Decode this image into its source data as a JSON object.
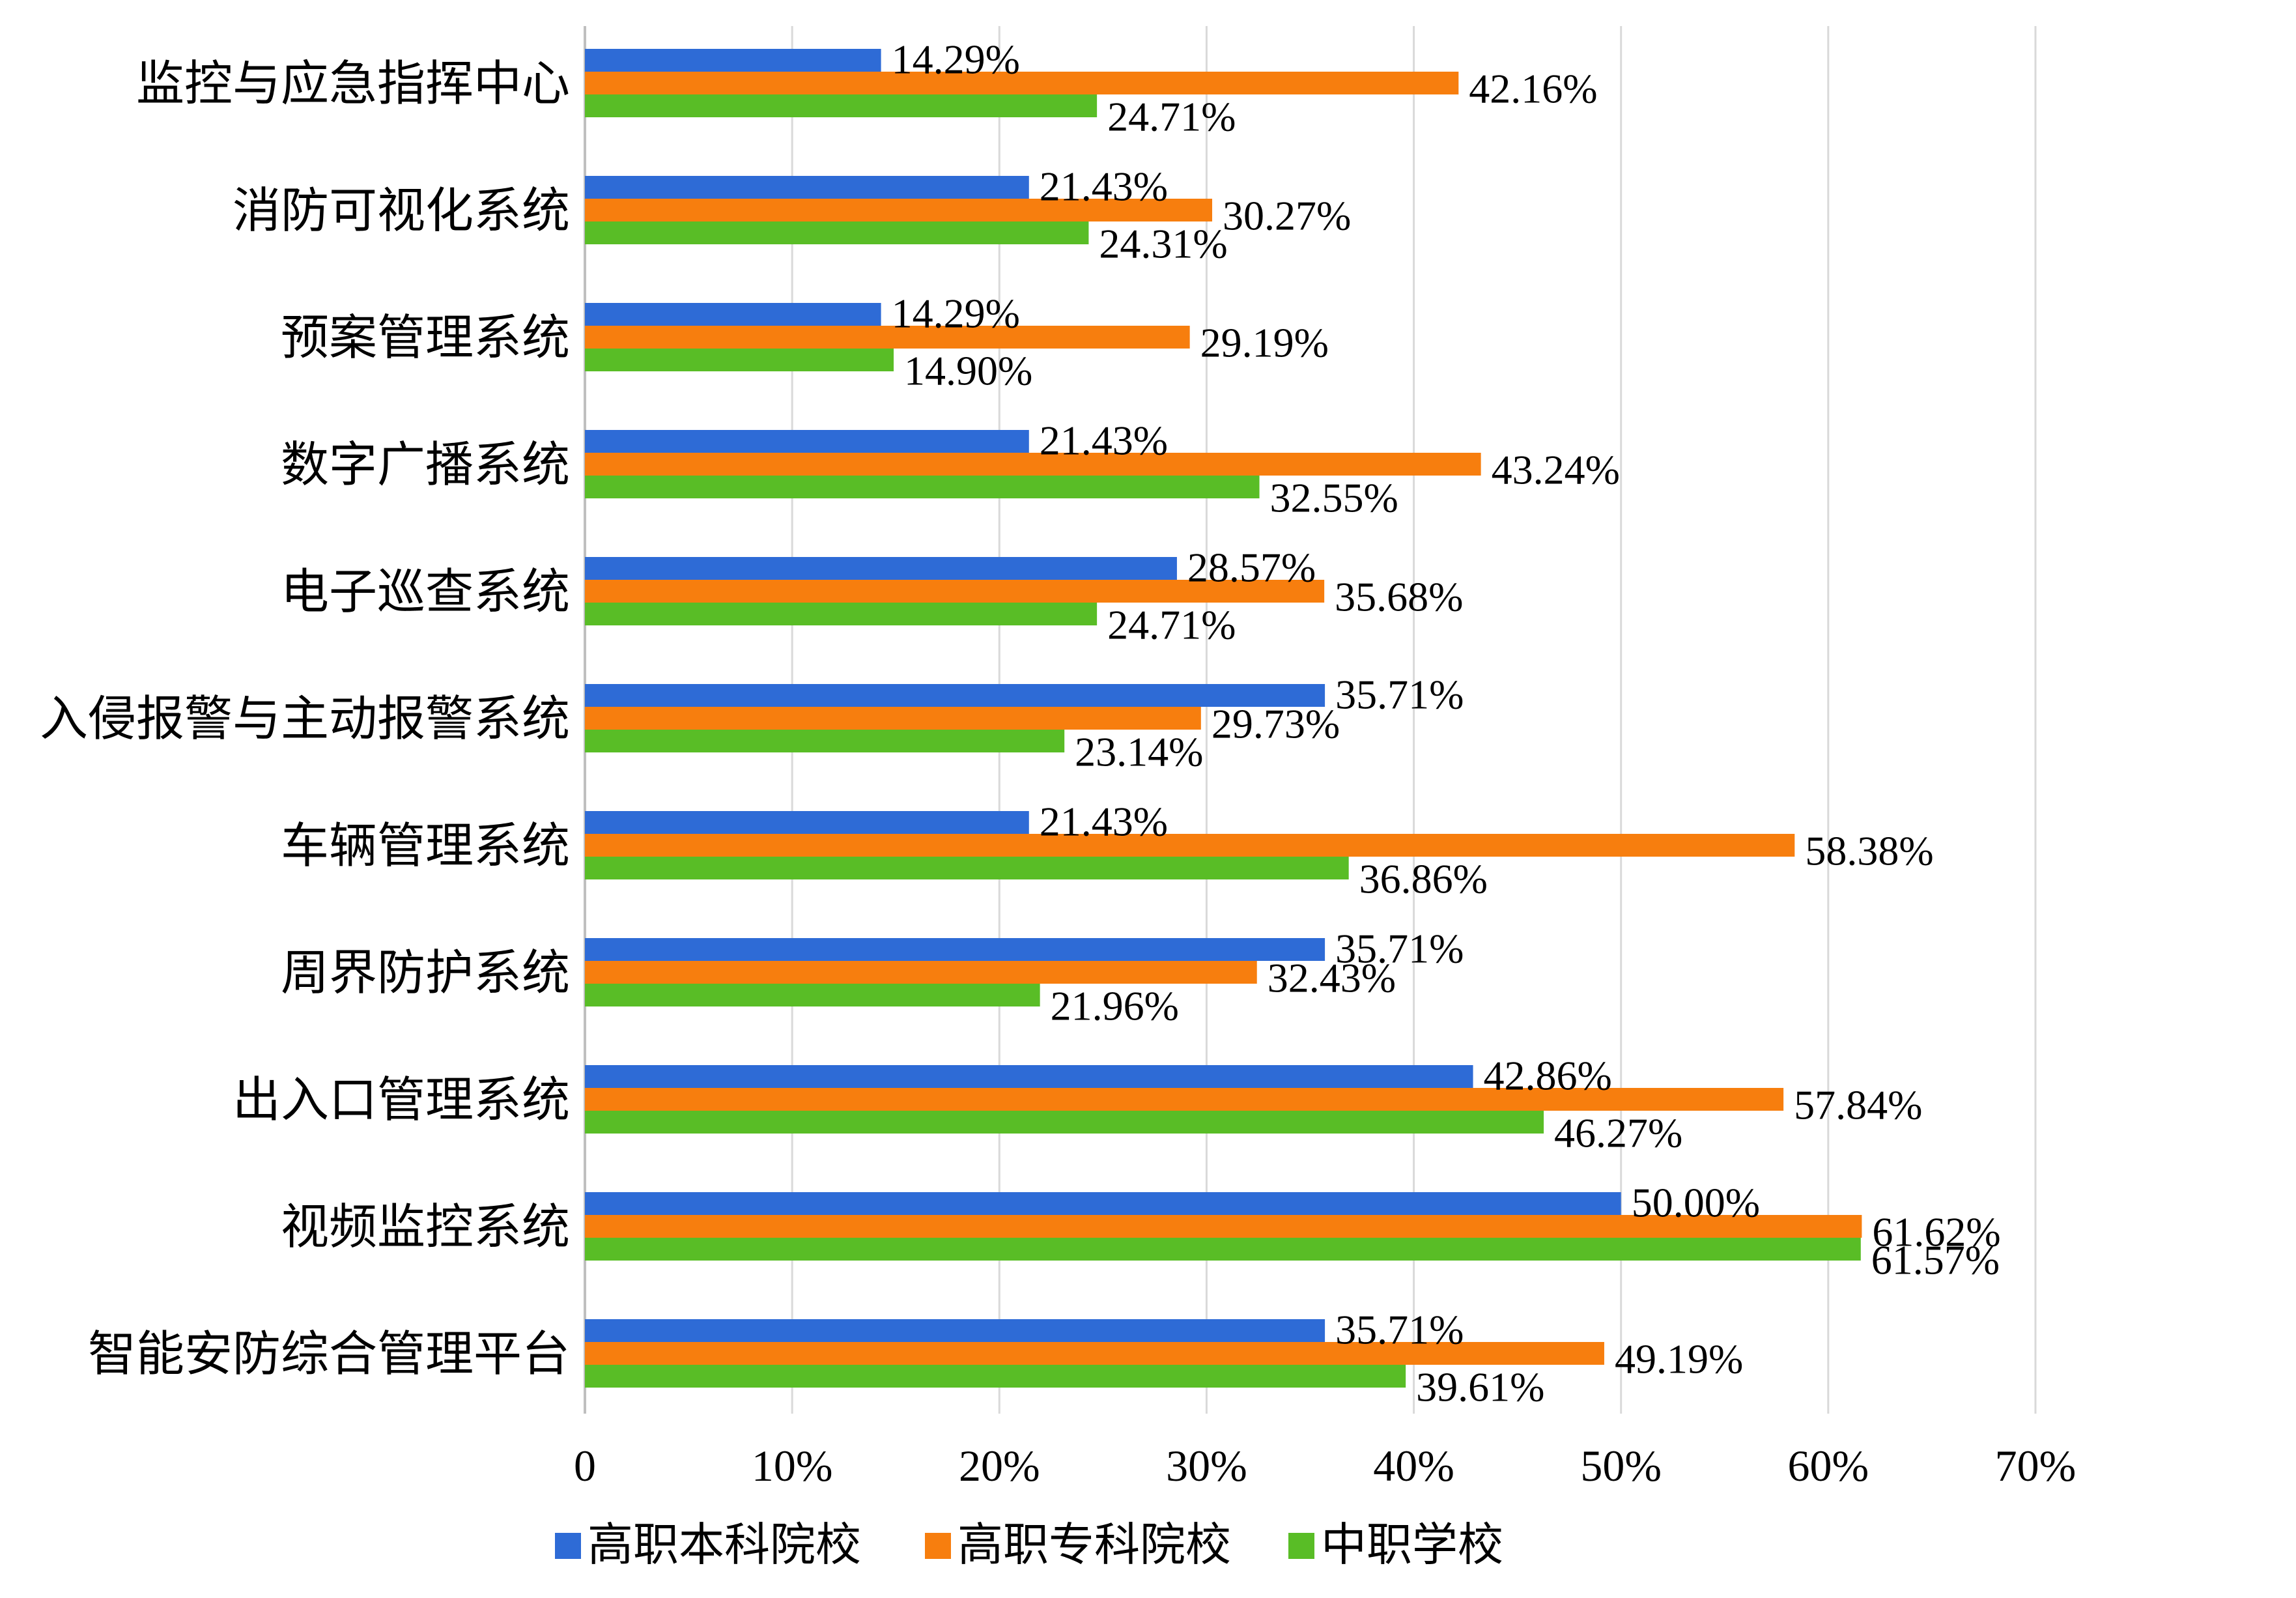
{
  "chart_data": {
    "type": "bar",
    "orientation": "horizontal",
    "categories": [
      "监控与应急指挥中心",
      "消防可视化系统",
      "预案管理系统",
      "数字广播系统",
      "电子巡查系统",
      "入侵报警与主动报警系统",
      "车辆管理系统",
      "周界防护系统",
      "出入口管理系统",
      "视频监控系统",
      "智能安防综合管理平台"
    ],
    "series": [
      {
        "name": "高职本科院校",
        "color": "#2e6bd6",
        "values": [
          14.29,
          21.43,
          14.29,
          21.43,
          28.57,
          35.71,
          21.43,
          35.71,
          42.86,
          50.0,
          35.71
        ],
        "labels": [
          "14.29%",
          "21.43%",
          "14.29%",
          "21.43%",
          "28.57%",
          "35.71%",
          "21.43%",
          "35.71%",
          "42.86%",
          "50.00%",
          "35.71%"
        ]
      },
      {
        "name": "高职专科院校",
        "color": "#f77e0e",
        "values": [
          42.16,
          30.27,
          29.19,
          43.24,
          35.68,
          29.73,
          58.38,
          32.43,
          57.84,
          61.62,
          49.19
        ],
        "labels": [
          "42.16%",
          "30.27%",
          "29.19%",
          "43.24%",
          "35.68%",
          "29.73%",
          "58.38%",
          "32.43%",
          "57.84%",
          "61.62%",
          "49.19%"
        ]
      },
      {
        "name": "中职学校",
        "color": "#59bd26",
        "values": [
          24.71,
          24.31,
          14.9,
          32.55,
          24.71,
          23.14,
          36.86,
          21.96,
          46.27,
          61.57,
          39.61
        ],
        "labels": [
          "24.71%",
          "24.31%",
          "14.90%",
          "32.55%",
          "24.71%",
          "23.14%",
          "36.86%",
          "21.96%",
          "46.27%",
          "61.57%",
          "39.61%"
        ]
      }
    ],
    "xlim": [
      0,
      70
    ],
    "xticks": [
      0,
      10,
      20,
      30,
      40,
      50,
      60,
      70
    ],
    "xtick_labels": [
      "0",
      "10%",
      "20%",
      "30%",
      "40%",
      "50%",
      "60%",
      "70%"
    ],
    "grid": true,
    "legend_position": "bottom"
  }
}
